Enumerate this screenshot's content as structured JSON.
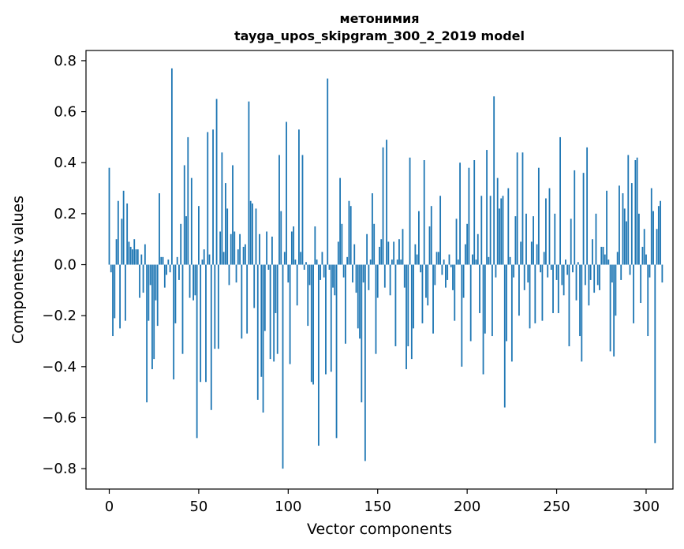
{
  "chart_data": {
    "type": "bar",
    "title": "метонимия",
    "subtitle": "tayga_upos_skipgram_300_2_2019 model",
    "xlabel": "Vector components",
    "ylabel": "Components values",
    "xlim": [
      -13,
      315
    ],
    "ylim": [
      -0.88,
      0.84
    ],
    "xticks": [
      0,
      50,
      100,
      150,
      200,
      250,
      300
    ],
    "xtick_labels": [
      "0",
      "50",
      "100",
      "150",
      "200",
      "250",
      "300"
    ],
    "yticks": [
      -0.8,
      -0.6,
      -0.4,
      -0.2,
      0.0,
      0.2,
      0.4,
      0.6,
      0.8
    ],
    "ytick_labels": [
      "−0.8",
      "−0.6",
      "−0.4",
      "−0.2",
      "0.0",
      "0.2",
      "0.4",
      "0.6",
      "0.8"
    ],
    "bar_color": "#1f77b4",
    "grid": false,
    "values": [
      0.38,
      -0.03,
      -0.28,
      -0.21,
      0.1,
      0.25,
      -0.25,
      0.18,
      0.29,
      -0.22,
      0.24,
      0.09,
      0.07,
      0.06,
      0.1,
      0.06,
      0.06,
      -0.13,
      0.04,
      -0.11,
      0.08,
      -0.54,
      -0.22,
      -0.08,
      -0.41,
      -0.37,
      -0.14,
      -0.24,
      0.28,
      0.03,
      0.03,
      -0.09,
      -0.04,
      0.02,
      -0.03,
      0.77,
      -0.45,
      -0.23,
      0.03,
      -0.06,
      0.16,
      -0.35,
      0.39,
      0.19,
      0.5,
      -0.13,
      0.34,
      -0.14,
      -0.12,
      -0.68,
      0.23,
      -0.46,
      0.02,
      0.06,
      -0.46,
      0.52,
      0.04,
      -0.57,
      0.53,
      -0.33,
      0.65,
      -0.33,
      0.13,
      0.44,
      0.05,
      0.32,
      0.22,
      -0.08,
      0.12,
      0.39,
      0.13,
      -0.07,
      0.06,
      0.12,
      -0.29,
      0.07,
      0.08,
      -0.27,
      0.64,
      0.25,
      0.24,
      -0.17,
      0.22,
      -0.53,
      0.12,
      -0.44,
      -0.58,
      -0.26,
      0.13,
      -0.02,
      -0.37,
      0.11,
      -0.38,
      -0.19,
      -0.35,
      0.43,
      0.21,
      -0.8,
      0.05,
      0.56,
      -0.07,
      -0.39,
      0.13,
      0.15,
      0.02,
      -0.16,
      0.53,
      0.05,
      0.43,
      -0.02,
      0.01,
      -0.24,
      -0.08,
      -0.46,
      -0.47,
      0.15,
      0.02,
      -0.71,
      -0.06,
      0.05,
      -0.05,
      -0.43,
      0.73,
      -0.02,
      -0.42,
      -0.09,
      -0.12,
      -0.68,
      0.09,
      0.34,
      0.16,
      -0.05,
      -0.31,
      0.03,
      0.25,
      0.23,
      -0.07,
      0.08,
      -0.11,
      -0.25,
      -0.29,
      -0.54,
      -0.07,
      -0.77,
      0.12,
      -0.1,
      0.02,
      0.28,
      0.16,
      -0.35,
      -0.13,
      0.07,
      0.1,
      0.46,
      -0.09,
      0.49,
      0.09,
      -0.12,
      0.02,
      0.09,
      -0.32,
      0.02,
      0.1,
      0.02,
      0.14,
      -0.09,
      -0.41,
      -0.32,
      0.42,
      -0.37,
      -0.25,
      0.08,
      0.04,
      0.21,
      -0.03,
      -0.23,
      0.41,
      -0.13,
      -0.16,
      0.15,
      0.23,
      -0.27,
      -0.08,
      0.05,
      0.05,
      0.27,
      -0.04,
      0.02,
      -0.09,
      -0.06,
      0.04,
      -0.01,
      -0.1,
      -0.22,
      0.18,
      0.02,
      0.4,
      -0.4,
      -0.13,
      0.08,
      0.16,
      0.38,
      -0.3,
      0.04,
      0.41,
      0.02,
      0.12,
      -0.19,
      0.27,
      -0.43,
      -0.27,
      0.45,
      0.03,
      0.27,
      -0.28,
      0.66,
      -0.05,
      0.34,
      0.22,
      0.26,
      0.27,
      -0.56,
      -0.3,
      0.3,
      0.03,
      -0.38,
      -0.05,
      0.19,
      0.44,
      -0.2,
      0.09,
      0.44,
      -0.1,
      0.2,
      -0.07,
      -0.25,
      0.09,
      0.19,
      -0.23,
      0.08,
      0.38,
      -0.03,
      -0.22,
      0.05,
      0.26,
      -0.05,
      0.3,
      -0.02,
      -0.19,
      0.2,
      -0.06,
      -0.19,
      0.5,
      -0.08,
      -0.12,
      0.02,
      -0.04,
      -0.32,
      0.18,
      -0.03,
      0.37,
      -0.14,
      0.01,
      -0.28,
      -0.38,
      0.36,
      -0.08,
      0.46,
      -0.16,
      -0.06,
      0.1,
      -0.11,
      0.2,
      -0.08,
      -0.1,
      0.07,
      0.07,
      0.04,
      0.29,
      0.02,
      -0.34,
      -0.07,
      -0.36,
      -0.2,
      0.05,
      0.31,
      -0.06,
      0.28,
      0.22,
      0.17,
      0.43,
      -0.04,
      0.32,
      -0.23,
      0.41,
      0.42,
      0.2,
      -0.15,
      0.07,
      0.14,
      0.04,
      -0.28,
      -0.05,
      0.3,
      0.21,
      -0.7,
      0.14,
      0.23,
      0.25,
      -0.07
    ]
  }
}
